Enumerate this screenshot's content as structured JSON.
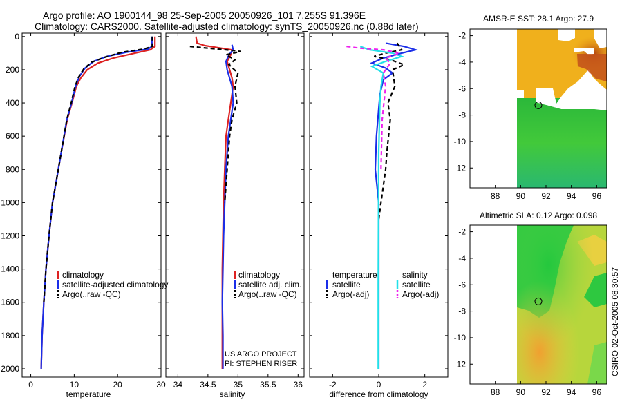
{
  "header": {
    "title_line1": "Argo profile: AO 1900144_98 25-Sep-2005 20050926_101 7.255S 91.396E",
    "title_line2": "Climatology: CARS2000. Satellite-adjusted climatology: synTS_20050926.nc (0.88d later)"
  },
  "side_label": "CSIRO 02-Oct-2005 08:30:57",
  "project_note": {
    "line1": "US ARGO PROJECT",
    "line2": "PI: STEPHEN RISER"
  },
  "colors": {
    "climatology": "#dd2222",
    "satellite": "#1a2ee8",
    "argo": "#000000",
    "satellite_salinity": "#22e0e8",
    "argo_adj_salinity": "#ee22ee"
  },
  "chart_data": [
    {
      "type": "line",
      "xlabel": "temperature",
      "ylabel": "",
      "xlim": [
        -2,
        30
      ],
      "ylim": [
        2050,
        -20
      ],
      "xticks": [
        0,
        10,
        20,
        30
      ],
      "yticks": [
        0,
        200,
        400,
        600,
        800,
        1000,
        1200,
        1400,
        1600,
        1800,
        2000
      ],
      "legend": [
        "climatology",
        "satellite-adjusted climatology",
        "Argo(..raw -QC)"
      ],
      "series": [
        {
          "name": "climatology",
          "style": "solid",
          "color": "#dd2222",
          "x": [
            28.6,
            28.6,
            27.5,
            24,
            19,
            15.5,
            13,
            11.5,
            10.5,
            9.5,
            8.4,
            7,
            6,
            5,
            4.2,
            3.5,
            3,
            2.6,
            2.4
          ],
          "y": [
            0,
            60,
            80,
            100,
            130,
            160,
            200,
            250,
            300,
            400,
            500,
            700,
            850,
            1000,
            1200,
            1400,
            1600,
            1800,
            2000
          ]
        },
        {
          "name": "satellite-adjusted climatology",
          "style": "solid",
          "color": "#1a2ee8",
          "x": [
            27.9,
            27.9,
            27,
            22,
            17.5,
            14.5,
            12.5,
            11.2,
            10.3,
            9.4,
            8.3,
            7,
            6,
            5,
            4.2,
            3.5,
            3,
            2.6,
            2.4
          ],
          "y": [
            0,
            60,
            75,
            95,
            120,
            150,
            190,
            240,
            300,
            400,
            500,
            700,
            850,
            1000,
            1200,
            1400,
            1600,
            1800,
            2000
          ]
        },
        {
          "name": "Argo(..raw -QC)",
          "style": "dashed",
          "color": "#000000",
          "x": [
            28,
            28,
            26,
            21,
            17,
            14,
            12.2,
            11,
            10.2,
            9.3,
            8.3,
            7,
            6,
            5,
            4.2,
            3.5,
            3
          ],
          "y": [
            0,
            60,
            75,
            95,
            125,
            155,
            195,
            245,
            300,
            400,
            500,
            700,
            850,
            1000,
            1200,
            1400,
            1600
          ]
        }
      ]
    },
    {
      "type": "line",
      "xlabel": "salinity",
      "ylabel": "",
      "xlim": [
        33.8,
        36.1
      ],
      "ylim": [
        2050,
        -20
      ],
      "xticks": [
        34,
        34.5,
        35,
        35.5,
        36
      ],
      "legend": [
        "climatology",
        "satellite adj. clim.",
        "Argo(..raw -QC)"
      ],
      "series": [
        {
          "name": "climatology",
          "style": "solid",
          "color": "#dd2222",
          "x": [
            34.3,
            34.32,
            34.45,
            34.9,
            34.88,
            34.82,
            34.86,
            34.9,
            34.92,
            34.88,
            34.84,
            34.8,
            34.78,
            34.76,
            34.75,
            34.74,
            34.74,
            34.74,
            34.74
          ],
          "y": [
            0,
            40,
            55,
            80,
            110,
            150,
            200,
            250,
            300,
            400,
            500,
            600,
            800,
            1000,
            1200,
            1400,
            1600,
            1800,
            2000
          ]
        },
        {
          "name": "satellite adj. clim.",
          "style": "solid",
          "color": "#1a2ee8",
          "x": [
            34.9,
            34.92,
            34.85,
            34.8,
            34.82,
            34.86,
            34.9,
            34.92,
            34.88,
            34.84,
            34.8,
            34.78,
            34.76,
            34.75,
            34.74,
            34.75,
            34.75
          ],
          "y": [
            50,
            80,
            110,
            150,
            200,
            250,
            300,
            400,
            500,
            600,
            800,
            1000,
            1200,
            1400,
            1600,
            1800,
            2000
          ]
        },
        {
          "name": "Argo(..raw -QC)",
          "style": "dashed",
          "color": "#000000",
          "x": [
            34.2,
            34.5,
            34.8,
            35.05,
            34.8,
            34.95,
            34.85,
            35.0,
            34.95,
            34.98,
            34.9,
            34.86,
            34.82,
            34.78
          ],
          "y": [
            60,
            70,
            80,
            90,
            110,
            140,
            170,
            220,
            300,
            400,
            500,
            600,
            800,
            1000
          ]
        }
      ]
    },
    {
      "type": "line",
      "xlabel": "difference from climatology",
      "ylabel": "",
      "xlim": [
        -3,
        3
      ],
      "ylim": [
        2050,
        -20
      ],
      "xticks": [
        -2,
        0,
        2
      ],
      "legend": [
        "temperature",
        "satellite",
        "Argo(-adj)",
        "salinity",
        "satellite",
        "Argo(-adj)"
      ],
      "series": [
        {
          "name": "temperature satellite",
          "style": "solid",
          "color": "#1a2ee8",
          "x": [
            0.3,
            1.1,
            1.6,
            1.0,
            0.2,
            -0.3,
            0.3,
            0.6,
            0.2,
            0.05,
            -0.1,
            -0.15,
            0,
            0,
            0
          ],
          "y": [
            40,
            60,
            80,
            100,
            130,
            160,
            190,
            220,
            260,
            350,
            600,
            800,
            1000,
            1500,
            2000
          ]
        },
        {
          "name": "temperature Argo(-adj)",
          "style": "dashed",
          "color": "#000000",
          "x": [
            0.8,
            1.0,
            0.3,
            -0.2,
            0.5,
            1.1,
            0.6,
            0.7,
            0.4,
            0.5,
            0.35,
            0.3,
            0.1,
            0
          ],
          "y": [
            40,
            80,
            100,
            120,
            140,
            170,
            200,
            300,
            400,
            500,
            700,
            800,
            1000,
            1100
          ]
        },
        {
          "name": "salinity satellite",
          "style": "solid",
          "color": "#22e0e8",
          "x": [
            -0.8,
            -0.4,
            0.6,
            1.0,
            0.3,
            -0.3,
            0.2,
            0.1,
            0.05,
            0,
            -0.02,
            -0.02
          ],
          "y": [
            60,
            80,
            100,
            120,
            150,
            180,
            220,
            300,
            400,
            700,
            1500,
            2000
          ]
        },
        {
          "name": "salinity Argo(-adj)",
          "style": "dashed",
          "color": "#ee22ee",
          "x": [
            -1.4,
            -0.8,
            0.2,
            0.9,
            0.3,
            0.5,
            0.2,
            0.3,
            0.15,
            0.1
          ],
          "y": [
            60,
            70,
            80,
            100,
            130,
            160,
            220,
            300,
            500,
            800
          ]
        }
      ]
    },
    {
      "type": "heatmap",
      "title": "AMSR-E SST: 28.1 Argo: 27.9",
      "xlim": [
        86,
        96.8
      ],
      "ylim": [
        -13.5,
        -1.5
      ],
      "xticks": [
        88,
        90,
        92,
        94,
        96
      ],
      "yticks": [
        -2,
        -4,
        -6,
        -8,
        -10,
        -12
      ],
      "marker": {
        "x": 91.4,
        "y": -7.26
      }
    },
    {
      "type": "heatmap",
      "title": "Altimetric SLA: 0.12 Argo: 0.098",
      "xlim": [
        86,
        96.8
      ],
      "ylim": [
        -13.5,
        -1.5
      ],
      "xticks": [
        88,
        90,
        92,
        94,
        96
      ],
      "yticks": [
        -2,
        -4,
        -6,
        -8,
        -10,
        -12
      ],
      "marker": {
        "x": 91.4,
        "y": -7.26
      }
    }
  ]
}
